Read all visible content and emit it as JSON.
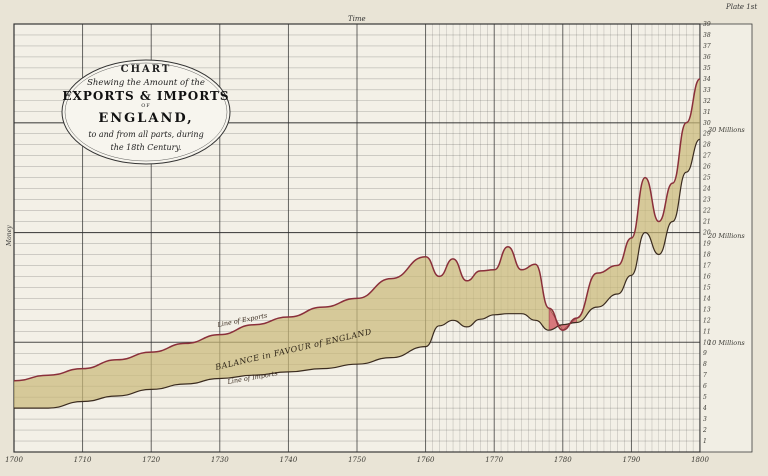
{
  "plate_label": "Plate 1st",
  "top_label": "Time",
  "left_label": "Money",
  "cartouche": {
    "line1": "CHART",
    "line2": "Shewing the Amount of the",
    "line3": "EXPORTS & IMPORTS",
    "line4": "OF",
    "line5": "ENGLAND,",
    "line6": "to and from all parts, during",
    "line7": "the 18th Century."
  },
  "annotations": {
    "exports_line": "Line of Exports",
    "imports_line": "Line of Imports",
    "balance": "BALANCE in FAVOUR of ENGLAND"
  },
  "millions_labels": [
    "10 Millions",
    "20 Millions",
    "30 Millions"
  ],
  "colors": {
    "paper": "#f3f0e7",
    "grid": "#2e2e2e",
    "balance_fill": "#c9b877",
    "deficit_fill": "#d86b78",
    "exports_line": "#8a2f3a",
    "imports_line": "#3a2b1f"
  },
  "chart_data": {
    "type": "area",
    "title": "CHART Shewing the Amount of the EXPORTS & IMPORTS of ENGLAND, to and from all parts, during the 18th Century.",
    "xlabel": "Time",
    "ylabel": "Money",
    "xlim": [
      1700,
      1800
    ],
    "ylim": [
      0,
      39
    ],
    "x_ticks": [
      "1700",
      "1710",
      "1720",
      "1730",
      "1740",
      "1750",
      "1760",
      "1770",
      "1780",
      "1790",
      "1800"
    ],
    "y_ticks": [
      "1",
      "2",
      "3",
      "4",
      "5",
      "6",
      "7",
      "8",
      "9",
      "10",
      "11",
      "12",
      "13",
      "14",
      "15",
      "16",
      "17",
      "18",
      "19",
      "20",
      "21",
      "22",
      "23",
      "24",
      "25",
      "26",
      "27",
      "28",
      "29",
      "30",
      "31",
      "32",
      "33",
      "34",
      "35",
      "36",
      "37",
      "38",
      "39"
    ],
    "grid": true,
    "series": [
      {
        "name": "Line of Exports",
        "x": [
          1700,
          1705,
          1710,
          1715,
          1720,
          1725,
          1730,
          1735,
          1740,
          1745,
          1750,
          1755,
          1760,
          1762,
          1764,
          1766,
          1768,
          1770,
          1772,
          1774,
          1776,
          1778,
          1780,
          1782,
          1785,
          1788,
          1790,
          1792,
          1794,
          1796,
          1798,
          1800
        ],
        "values": [
          6.5,
          7.0,
          7.6,
          8.4,
          9.1,
          9.9,
          10.7,
          11.6,
          12.3,
          13.2,
          14.0,
          15.8,
          17.8,
          16.0,
          17.6,
          15.6,
          16.5,
          16.6,
          18.7,
          16.6,
          17.1,
          13.1,
          11.1,
          12.2,
          16.3,
          17.0,
          19.5,
          25.0,
          21.0,
          24.5,
          30.0,
          34.0
        ]
      },
      {
        "name": "Line of Imports",
        "x": [
          1700,
          1705,
          1710,
          1715,
          1720,
          1725,
          1730,
          1735,
          1740,
          1745,
          1750,
          1755,
          1760,
          1762,
          1764,
          1766,
          1768,
          1770,
          1772,
          1774,
          1776,
          1778,
          1780,
          1782,
          1785,
          1788,
          1790,
          1792,
          1794,
          1796,
          1798,
          1800
        ],
        "values": [
          4.0,
          4.0,
          4.6,
          5.1,
          5.7,
          6.2,
          6.7,
          7.0,
          7.3,
          7.6,
          8.0,
          8.6,
          9.6,
          11.5,
          12.0,
          11.4,
          12.1,
          12.5,
          12.6,
          12.6,
          12.0,
          11.1,
          11.6,
          11.8,
          13.2,
          14.4,
          16.1,
          20.0,
          18.0,
          21.0,
          25.5,
          28.5
        ]
      }
    ]
  }
}
